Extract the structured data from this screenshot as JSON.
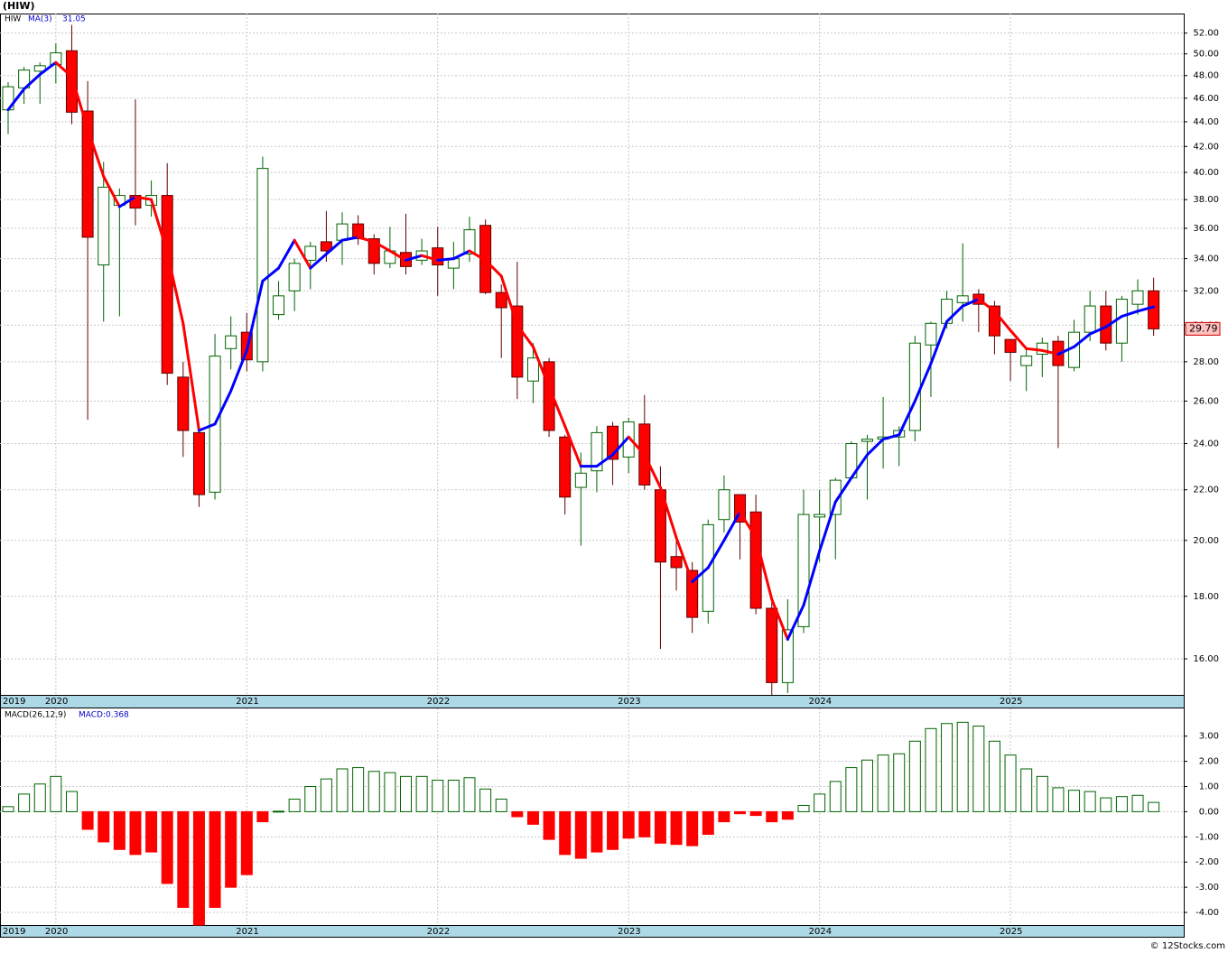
{
  "chart_data": [
    {
      "type": "candlestick",
      "title": "(HIW)",
      "symbol": "HIW",
      "categories": [
        "2019",
        null,
        null,
        "2020",
        null,
        null,
        null,
        null,
        null,
        null,
        null,
        null,
        null,
        null,
        null,
        "2021",
        null,
        null,
        null,
        null,
        null,
        null,
        null,
        null,
        null,
        null,
        null,
        "2022",
        null,
        null,
        null,
        null,
        null,
        null,
        null,
        null,
        null,
        null,
        null,
        "2023",
        null,
        null,
        null,
        null,
        null,
        null,
        null,
        null,
        null,
        null,
        null,
        "2024",
        null,
        null,
        null,
        null,
        null,
        null,
        null,
        null,
        null,
        null,
        null,
        "2025",
        null,
        null,
        null,
        null,
        null,
        null,
        null,
        null,
        null
      ],
      "open": [
        45.0,
        46.9,
        48.4,
        49.0,
        50.3,
        44.9,
        33.6,
        37.6,
        38.3,
        37.6,
        38.3,
        27.2,
        24.5,
        21.9,
        28.7,
        29.6,
        28.0,
        30.6,
        32.0,
        33.9,
        35.1,
        35.2,
        36.3,
        35.3,
        33.7,
        34.4,
        33.9,
        34.7,
        33.4,
        34.3,
        36.2,
        31.9,
        31.1,
        27.0,
        28.0,
        24.3,
        22.1,
        22.8,
        24.8,
        23.4,
        24.9,
        22.0,
        19.4,
        18.9,
        17.5,
        20.8,
        21.8,
        21.1,
        17.6,
        15.3,
        17.0,
        20.9,
        21.0,
        22.5,
        24.1,
        24.2,
        24.3,
        24.6,
        28.9,
        30.1,
        31.3,
        31.8,
        31.1,
        29.2,
        27.8,
        28.4,
        29.1,
        27.7,
        29.6,
        31.1,
        29.0,
        31.2,
        32.0
      ],
      "high": [
        47.4,
        48.8,
        49.2,
        51.0,
        52.8,
        47.5,
        40.8,
        38.8,
        45.9,
        39.4,
        40.7,
        28.0,
        24.6,
        29.5,
        30.5,
        30.7,
        41.2,
        32.6,
        34.0,
        35.1,
        37.2,
        37.1,
        36.9,
        35.6,
        36.1,
        37.0,
        35.3,
        36.1,
        35.1,
        36.8,
        36.6,
        32.4,
        33.8,
        29.0,
        28.2,
        24.4,
        23.6,
        24.8,
        25.0,
        25.2,
        26.3,
        23.0,
        20.0,
        19.2,
        20.8,
        22.6,
        21.8,
        21.8,
        17.8,
        17.9,
        22.0,
        22.0,
        22.5,
        24.1,
        24.4,
        26.2,
        24.8,
        29.4,
        30.2,
        32.0,
        35.0,
        32.1,
        31.4,
        29.2,
        28.7,
        29.3,
        29.4,
        30.3,
        32.0,
        32.0,
        31.7,
        32.7,
        32.8
      ],
      "low": [
        43.0,
        45.5,
        45.5,
        47.3,
        43.8,
        25.1,
        30.2,
        30.5,
        36.2,
        36.8,
        26.8,
        23.4,
        21.3,
        21.6,
        27.6,
        27.5,
        27.5,
        30.3,
        30.8,
        32.1,
        33.8,
        33.6,
        34.9,
        33.0,
        33.4,
        33.0,
        33.6,
        31.7,
        32.1,
        33.8,
        31.8,
        28.2,
        26.1,
        25.9,
        24.3,
        21.0,
        19.8,
        21.9,
        22.2,
        22.7,
        22.0,
        16.3,
        18.2,
        16.8,
        17.1,
        20.3,
        19.3,
        17.4,
        14.95,
        15.0,
        16.8,
        19.2,
        19.3,
        22.4,
        21.6,
        22.9,
        23.0,
        24.1,
        26.2,
        29.8,
        30.2,
        29.6,
        28.4,
        27.0,
        26.5,
        27.2,
        23.8,
        27.5,
        29.1,
        28.6,
        28.0,
        30.6,
        29.4
      ],
      "close": [
        47.0,
        48.5,
        48.9,
        50.1,
        44.8,
        35.4,
        38.9,
        38.3,
        37.4,
        38.3,
        27.4,
        24.6,
        21.8,
        28.3,
        29.4,
        28.1,
        40.3,
        31.7,
        33.7,
        34.8,
        34.5,
        36.3,
        35.3,
        33.7,
        34.5,
        33.5,
        34.5,
        33.6,
        34.0,
        35.9,
        31.9,
        31.0,
        27.2,
        28.2,
        24.6,
        21.7,
        22.7,
        24.5,
        23.3,
        25.0,
        22.2,
        19.2,
        19.0,
        17.3,
        20.6,
        22.0,
        20.7,
        17.6,
        15.3,
        16.9,
        21.0,
        21.0,
        22.4,
        24.0,
        24.2,
        24.3,
        24.6,
        29.0,
        30.1,
        31.5,
        31.7,
        31.2,
        29.4,
        28.5,
        28.3,
        29.0,
        27.8,
        29.6,
        31.1,
        29.0,
        31.5,
        32.0,
        29.79
      ],
      "up_color": "#006400",
      "down_color": "#ff0000",
      "overlay": {
        "name": "MA(3)",
        "value_label": "31.05",
        "up_color": "#0000ff",
        "down_color": "#ff0000",
        "values": [
          45.0,
          46.8,
          48.1,
          49.2,
          47.9,
          43.4,
          39.7,
          37.5,
          38.2,
          38.0,
          34.4,
          30.1,
          24.6,
          24.9,
          26.5,
          28.6,
          32.6,
          33.4,
          35.2,
          33.4,
          34.3,
          35.2,
          35.4,
          35.1,
          34.5,
          33.9,
          34.2,
          33.9,
          34.0,
          34.5,
          33.9,
          32.9,
          30.0,
          28.8,
          26.7,
          24.8,
          23.0,
          23.0,
          23.5,
          24.3,
          23.5,
          22.1,
          20.1,
          18.5,
          19.0,
          20.0,
          21.1,
          20.1,
          17.9,
          16.6,
          17.7,
          19.6,
          21.5,
          22.5,
          23.5,
          24.2,
          24.4,
          26.0,
          27.9,
          30.2,
          31.1,
          31.5,
          30.8,
          29.7,
          28.7,
          28.6,
          28.4,
          28.8,
          29.5,
          29.9,
          30.5,
          30.8,
          31.05
        ]
      },
      "log": true,
      "grid": true,
      "ylim": [
        14.95,
        53.95
      ],
      "yticks": [
        {
          "value": 16,
          "label": "16.00"
        },
        {
          "value": 18,
          "label": "18.00"
        },
        {
          "value": 20,
          "label": "20.00"
        },
        {
          "value": 22,
          "label": "22.00"
        },
        {
          "value": 24,
          "label": "24.00"
        },
        {
          "value": 26,
          "label": "26.00"
        },
        {
          "value": 28,
          "label": "28.00"
        },
        {
          "value": 30,
          "label": "30.00"
        },
        {
          "value": 32,
          "label": "32.00"
        },
        {
          "value": 34,
          "label": "34.00"
        },
        {
          "value": 36,
          "label": "36.00"
        },
        {
          "value": 38,
          "label": "38.00"
        },
        {
          "value": 40,
          "label": "40.00"
        },
        {
          "value": 42,
          "label": "42.00"
        },
        {
          "value": 44,
          "label": "44.00"
        },
        {
          "value": 46,
          "label": "46.00"
        },
        {
          "value": 48,
          "label": "48.00"
        },
        {
          "value": 50,
          "label": "50.00"
        },
        {
          "value": 52,
          "label": "52.00"
        }
      ]
    },
    {
      "type": "bar",
      "name": "MACD(26,12,9)",
      "value_label": "MACD:0.368",
      "positive_color": "#006400",
      "negative_color": "#ff0000",
      "values": [
        0.2,
        0.7,
        1.1,
        1.4,
        0.8,
        -0.7,
        -1.2,
        -1.5,
        -1.7,
        -1.6,
        -2.85,
        -3.8,
        -4.5,
        -3.8,
        -3.0,
        -2.5,
        -0.4,
        0.02,
        0.5,
        1.0,
        1.3,
        1.7,
        1.75,
        1.6,
        1.55,
        1.4,
        1.4,
        1.25,
        1.25,
        1.35,
        0.9,
        0.5,
        -0.2,
        -0.5,
        -1.1,
        -1.7,
        -1.85,
        -1.6,
        -1.5,
        -1.05,
        -1.0,
        -1.25,
        -1.3,
        -1.35,
        -0.9,
        -0.4,
        -0.08,
        -0.15,
        -0.4,
        -0.3,
        0.25,
        0.7,
        1.2,
        1.75,
        2.05,
        2.25,
        2.3,
        2.8,
        3.3,
        3.5,
        3.55,
        3.4,
        2.8,
        2.25,
        1.7,
        1.4,
        0.95,
        0.85,
        0.8,
        0.55,
        0.6,
        0.65,
        0.368
      ],
      "grid": true,
      "ylim": [
        -4.5,
        4.1
      ],
      "yticks": [
        {
          "value": -4,
          "label": "-4.00"
        },
        {
          "value": -3,
          "label": "-3.00"
        },
        {
          "value": -2,
          "label": "-2.00"
        },
        {
          "value": -1,
          "label": "-1.00"
        },
        {
          "value": 0,
          "label": "0.00"
        },
        {
          "value": 1,
          "label": "1.00"
        },
        {
          "value": 2,
          "label": "2.00"
        },
        {
          "value": 3,
          "label": "3.00"
        }
      ]
    }
  ],
  "footer": "© 12Stocks.com"
}
